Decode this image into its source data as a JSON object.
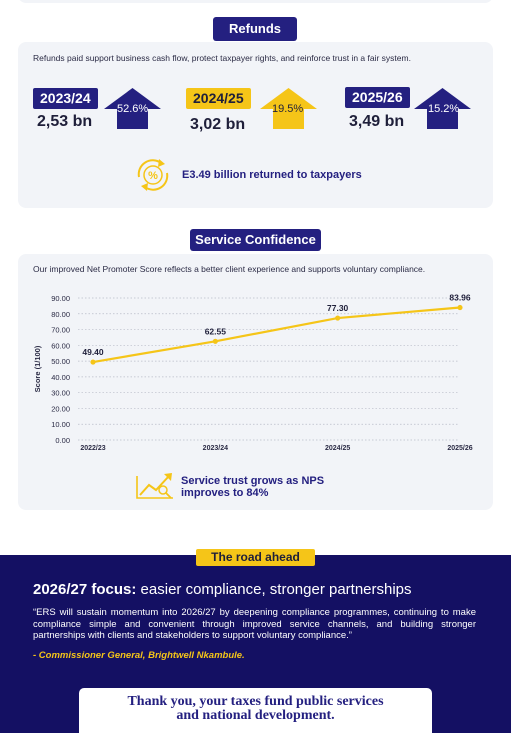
{
  "refunds": {
    "title": "Refunds",
    "intro": "Refunds paid support business cash flow, protect taxpayer rights, and reinforce trust in a fair system.",
    "items": [
      {
        "year": "2023/24",
        "amount": "2,53 bn",
        "change": "52.6%",
        "accent": "#242080"
      },
      {
        "year": "2024/25",
        "amount": "3,02 bn",
        "change": "19.5%",
        "accent": "#f5c518"
      },
      {
        "year": "2025/26",
        "amount": "3,49 bn",
        "change": "15.2%",
        "accent": "#242080"
      }
    ],
    "callout": {
      "icon": "percent-refresh-icon",
      "text": "E3.49 billion returned to taxpayers"
    }
  },
  "service_confidence": {
    "title": "Service Confidence",
    "intro": "Our improved Net Promoter Score reflects a better client experience and supports voluntary compliance.",
    "callout": {
      "icon": "growth-chart-icon",
      "line1": "Service trust grows as NPS",
      "line2": "improves to 84%"
    }
  },
  "chart_data": {
    "type": "line",
    "categories": [
      "2022/23",
      "2023/24",
      "2024/25",
      "2025/26"
    ],
    "series": [
      {
        "values": [
          49.4,
          62.55,
          77.3,
          83.96
        ]
      }
    ],
    "data_labels": [
      "49.40",
      "62.55",
      "77.30",
      "83.96"
    ],
    "ylabel": "Score (1/100)",
    "ylim": [
      0,
      90
    ],
    "yticks": [
      "0.00",
      "10.00",
      "20.00",
      "30.00",
      "40.00",
      "50.00",
      "60.00",
      "70.00",
      "80.00",
      "90.00"
    ],
    "grid": "dotted horizontal",
    "line_color": "#f5c518"
  },
  "road_ahead": {
    "title": "The road ahead",
    "heading_bold": "2026/27 focus:",
    "heading_rest": " easier compliance, stronger partnerships",
    "quote": "“ERS will sustain momentum into 2026/27 by deepening compliance programmes, continuing to make compliance simple and convenient through improved service channels, and building stronger partnerships with clients and stakeholders to support voluntary compliance.”",
    "attribution": "- Commissioner General, Brightwell Nkambule.",
    "thanks_line1": "Thank you, your taxes fund public services",
    "thanks_line2": "and national development."
  },
  "colors": {
    "navy": "#242080",
    "gold": "#f5c518",
    "band": "#141063",
    "card": "#f2f4f8"
  }
}
